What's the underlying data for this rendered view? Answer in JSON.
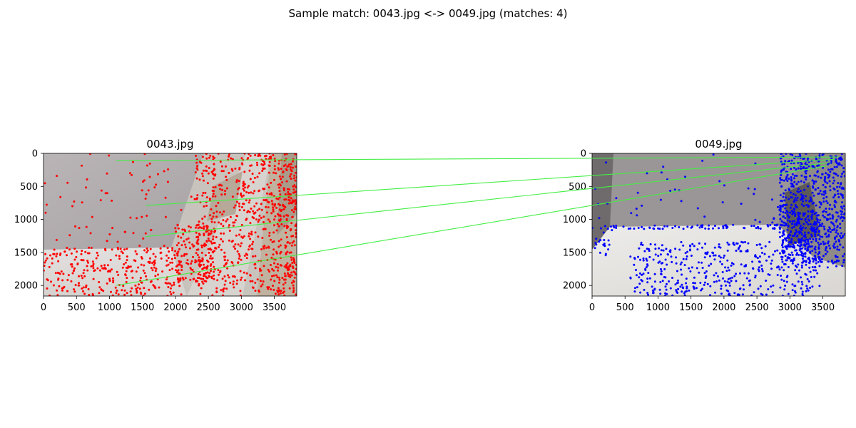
{
  "figure": {
    "title": "Sample match: 0043.jpg <-> 0049.jpg (matches: 4)"
  },
  "chart_data": {
    "type": "scatter",
    "title": "Sample match: 0043.jpg <-> 0049.jpg (matches: 4)",
    "image_width": 3840,
    "image_height": 2160,
    "panels": [
      {
        "title": "0043.jpg",
        "xlim": [
          0,
          3840
        ],
        "ylim": [
          2160,
          0
        ],
        "xticks": [
          0,
          500,
          1000,
          1500,
          2000,
          2500,
          3000,
          3500
        ],
        "yticks": [
          0,
          500,
          1000,
          1500,
          2000
        ],
        "keypoint_color": "#ff0000"
      },
      {
        "title": "0049.jpg",
        "xlim": [
          0,
          3840
        ],
        "ylim": [
          2160,
          0
        ],
        "xticks": [
          0,
          500,
          1000,
          1500,
          2000,
          2500,
          3000,
          3500
        ],
        "yticks": [
          0,
          500,
          1000,
          1500,
          2000
        ],
        "keypoint_color": "#0000ff"
      }
    ],
    "match_color": "#44ee44",
    "matches": [
      {
        "src": [
          1100,
          110
        ],
        "dst": [
          3740,
          55
        ]
      },
      {
        "src": [
          1550,
          790
        ],
        "dst": [
          3680,
          90
        ]
      },
      {
        "src": [
          1550,
          1260
        ],
        "dst": [
          3620,
          140
        ]
      },
      {
        "src": [
          1100,
          2000
        ],
        "dst": [
          3560,
          190
        ]
      }
    ]
  }
}
